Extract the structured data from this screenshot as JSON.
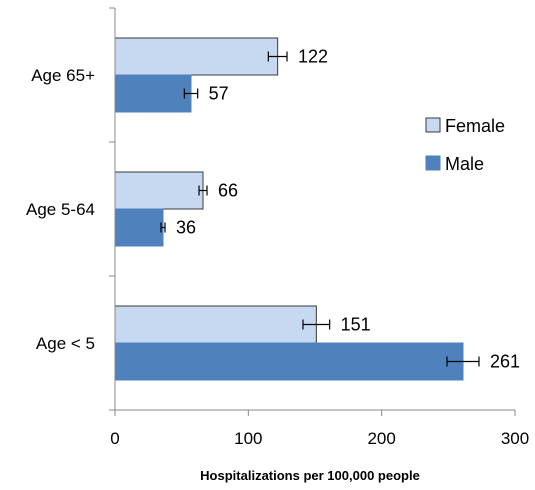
{
  "chart_data": {
    "type": "bar",
    "orientation": "horizontal",
    "title": "",
    "xlabel": "Hospitalizations per 100,000 people",
    "ylabel": "",
    "xlim": [
      0,
      300
    ],
    "xticks": [
      "0",
      "100",
      "200",
      "300"
    ],
    "grid": false,
    "legend": "right",
    "categories": [
      "Age 65+",
      "Age 5-64",
      "Age < 5"
    ],
    "series": [
      {
        "name": "Female",
        "color": "#c6d9f1",
        "values": [
          122,
          66,
          151
        ],
        "value_labels": [
          "122",
          "66",
          "151"
        ],
        "errors": [
          7,
          3,
          10
        ]
      },
      {
        "name": "Male",
        "color": "#4f81bd",
        "values": [
          57,
          36,
          261
        ],
        "value_labels": [
          "57",
          "36",
          "261"
        ],
        "errors": [
          5,
          1.5,
          12
        ]
      }
    ]
  }
}
